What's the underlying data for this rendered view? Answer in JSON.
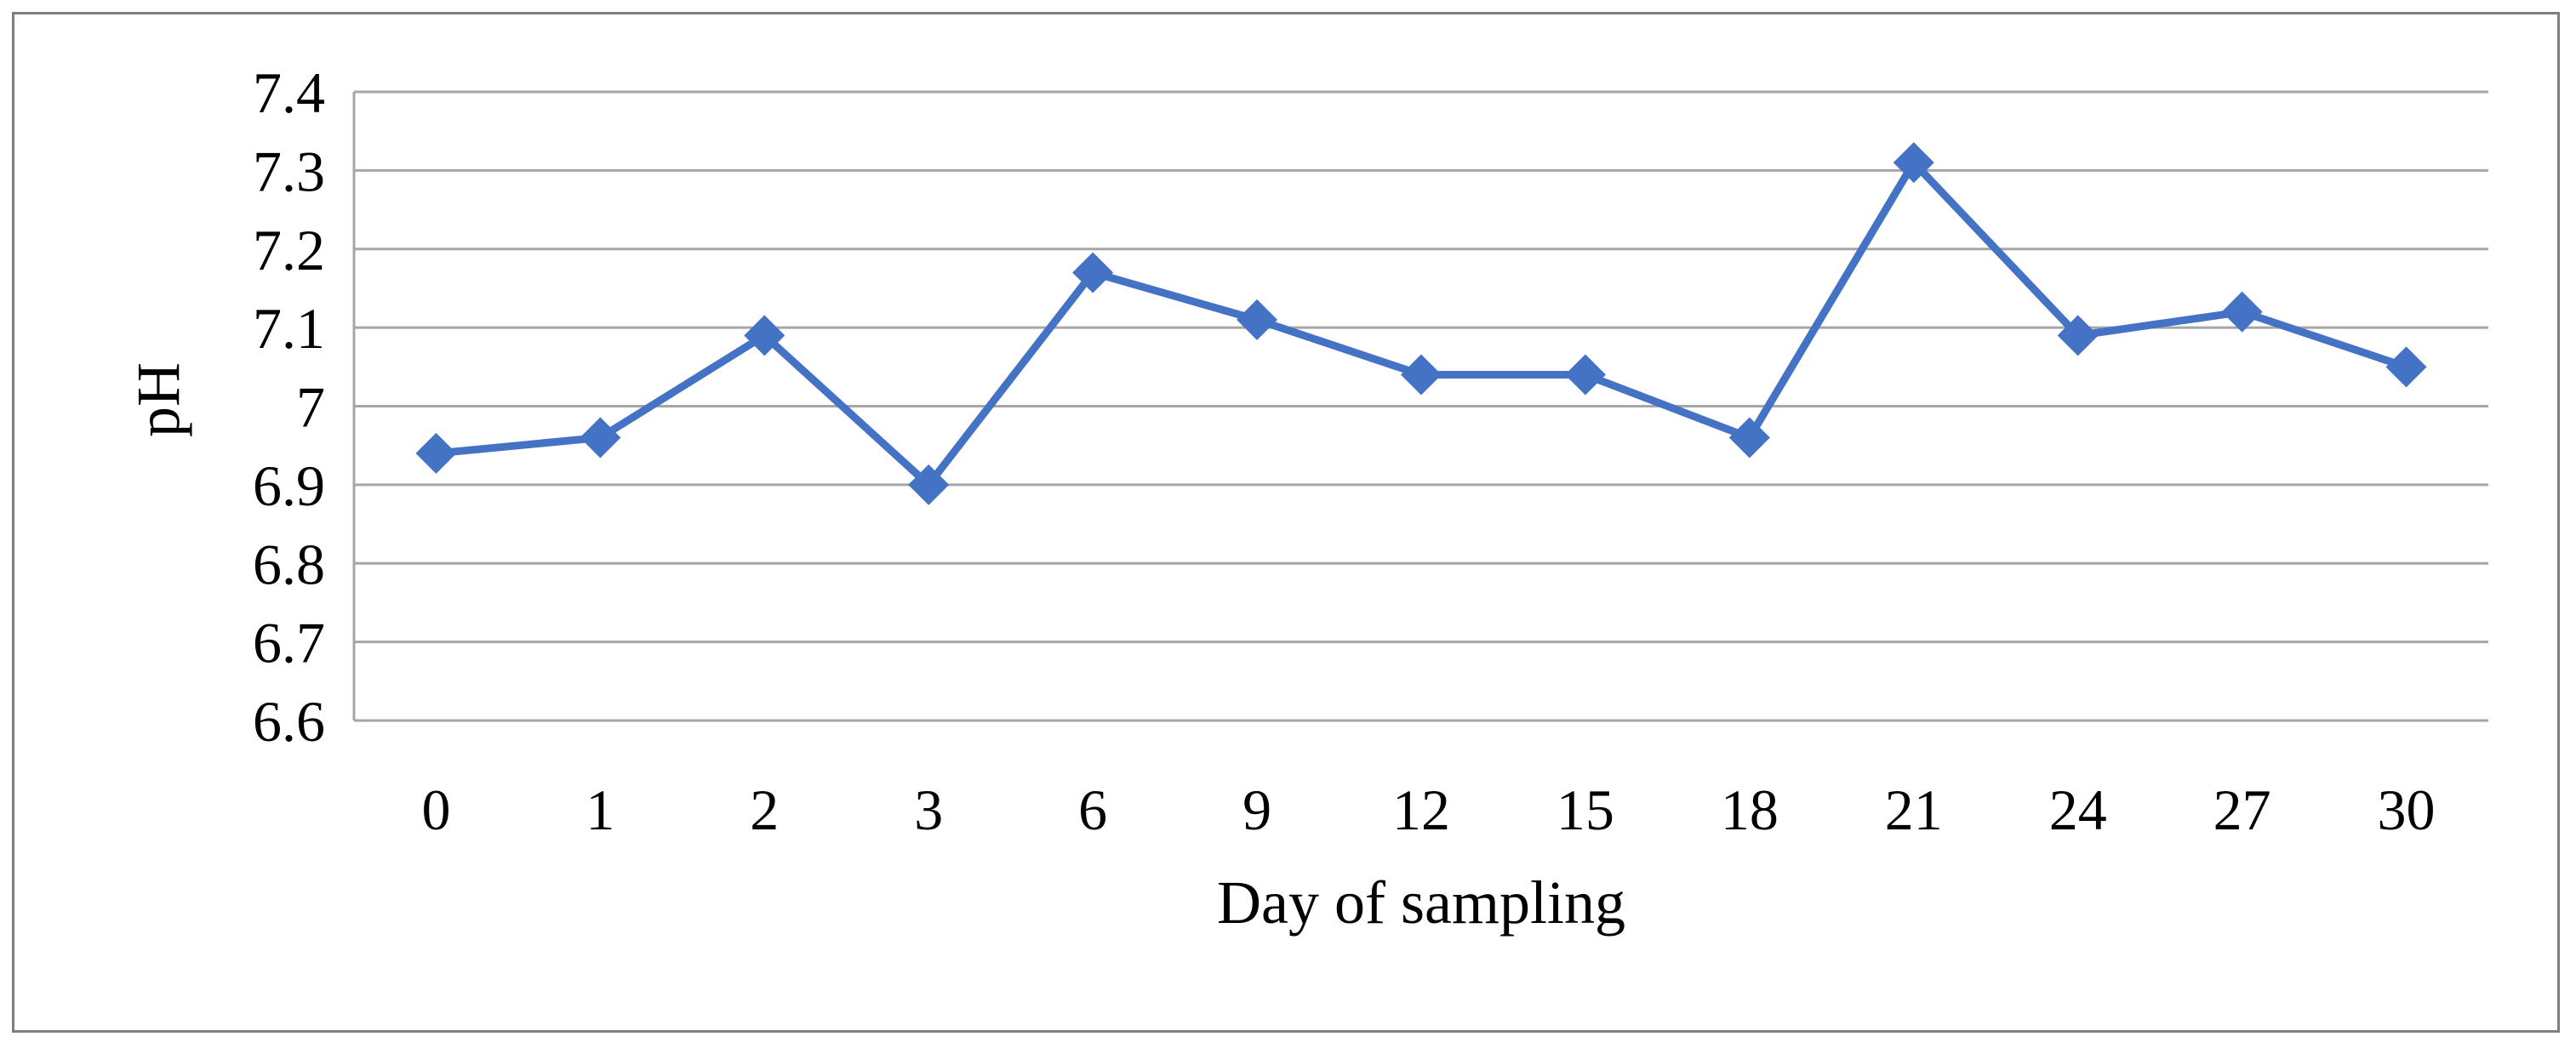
{
  "chart_data": {
    "type": "line",
    "xlabel": "Day of sampling",
    "ylabel": "pH",
    "categories": [
      "0",
      "1",
      "2",
      "3",
      "6",
      "9",
      "12",
      "15",
      "18",
      "21",
      "24",
      "27",
      "30"
    ],
    "series": [
      {
        "values": [
          6.94,
          6.96,
          7.09,
          6.9,
          7.17,
          7.11,
          7.04,
          7.04,
          6.96,
          7.31,
          7.09,
          7.12,
          7.05
        ]
      }
    ],
    "ylim": [
      6.6,
      7.4
    ],
    "yticks": [
      "6.6",
      "6.7",
      "6.8",
      "6.9",
      "7",
      "7.1",
      "7.2",
      "7.3",
      "7.4"
    ],
    "grid": true,
    "legend": "none",
    "colors": {
      "line": "#4472c4",
      "grid": "#a6a6a6",
      "frame": "#7f7f7f"
    },
    "marker": "diamond"
  }
}
